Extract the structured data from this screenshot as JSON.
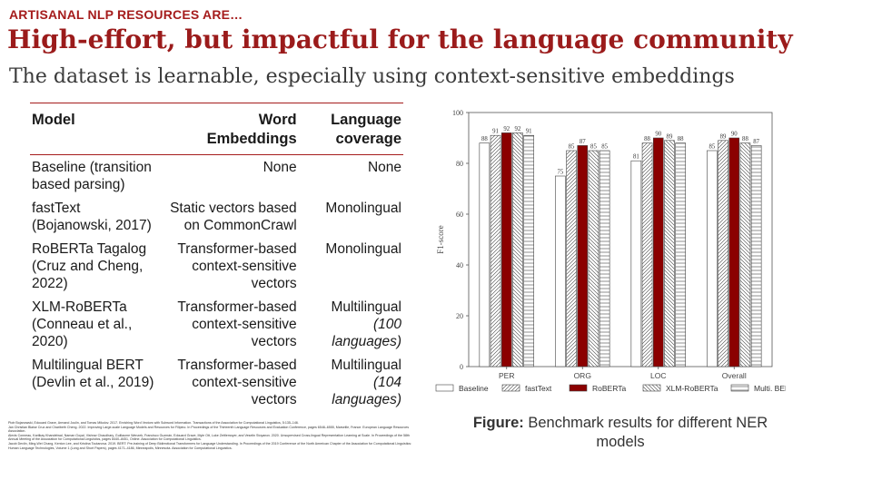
{
  "header": {
    "kicker": "ARTISANAL NLP RESOURCES ARE…",
    "title": "High-effort, but impactful for the language community",
    "subtitle": "The dataset is learnable, especially using context-sensitive embeddings"
  },
  "table": {
    "headers": {
      "model": "Model",
      "embeddings_line1": "Word",
      "embeddings_line2": "Embeddings",
      "coverage_line1": "Language",
      "coverage_line2": "coverage"
    },
    "rows": [
      {
        "model": [
          "Baseline (transition",
          "based parsing)"
        ],
        "embeddings": [
          "None"
        ],
        "coverage": "None",
        "coverage_sub": ""
      },
      {
        "model": [
          "fastText",
          "(Bojanowski, 2017)"
        ],
        "embeddings": [
          "Static vectors based",
          "on CommonCrawl"
        ],
        "coverage": "Monolingual",
        "coverage_sub": ""
      },
      {
        "model": [
          "RoBERTa Tagalog",
          "(Cruz and Cheng,",
          "2022)"
        ],
        "embeddings": [
          "Transformer-based",
          "context-sensitive",
          "vectors"
        ],
        "coverage": "Monolingual",
        "coverage_sub": ""
      },
      {
        "model": [
          "XLM-RoBERTa",
          "(Conneau et al.,",
          "2020)"
        ],
        "embeddings": [
          "Transformer-based",
          "context-sensitive",
          "vectors"
        ],
        "coverage": "Multilingual",
        "coverage_sub": "(100 languages)"
      },
      {
        "model": [
          "Multilingual BERT",
          "(Devlin et al., 2019)"
        ],
        "embeddings": [
          "Transformer-based",
          "context-sensitive",
          "vectors"
        ],
        "coverage": "Multilingual",
        "coverage_sub": "(104 languages)"
      }
    ]
  },
  "references": [
    "Piotr Bojanowski, Edouard Grave, Armand Joulin, and Tomas Mikolov. 2017. Enriching Word Vectors with Subword Information. Transactions of the Association for Computational Linguistics, 5:135–146.",
    "Jan Christian Blaise Cruz and Charibeth Cheng. 2022. Improving Large-scale Language Models and Resources for Filipino. In Proceedings of the Thirteenth Language Resources and Evaluation Conference, pages 6548–6555, Marseille, France. European Language Resources Association.",
    "Alexis Conneau, Kartikay Khandelwal, Naman Goyal, Vishrav Chaudhary, Guillaume Wenzek, Francisco Guzmán, Edouard Grave, Myle Ott, Luke Zettlemoyer, and Veselin Stoyanov. 2020. Unsupervised Cross-lingual Representation Learning at Scale. In Proceedings of the 58th Annual Meeting of the Association for Computational Linguistics, pages 8440–8451, Online. Association for Computational Linguistics.",
    "Jacob Devlin, Ming-Wei Chang, Kenton Lee, and Kristina Toutanova. 2019. BERT: Pre-training of Deep Bidirectional Transformers for Language Understanding. In Proceedings of the 2019 Conference of the North American Chapter of the Association for Computational Linguistics: Human Language Technologies, Volume 1 (Long and Short Papers), pages 4171–4186, Minneapolis, Minnesota. Association for Computational Linguistics."
  ],
  "figure": {
    "caption_bold": "Figure:",
    "caption_rest": " Benchmark results for different NER models"
  },
  "chart_data": {
    "type": "bar",
    "categories": [
      "PER",
      "ORG",
      "LOC",
      "Overall"
    ],
    "ylabel": "F1-score",
    "ylim": [
      0,
      100
    ],
    "yticks": [
      0,
      20,
      40,
      60,
      80,
      100
    ],
    "legend_placement": "bottom",
    "series": [
      {
        "name": "Baseline",
        "values": [
          88,
          75,
          81,
          85
        ],
        "fill": "#ffffff",
        "pattern": "none"
      },
      {
        "name": "fastText",
        "values": [
          91,
          85,
          88,
          89
        ],
        "fill": "#ffffff",
        "pattern": "diag-right"
      },
      {
        "name": "RoBERTa",
        "values": [
          92,
          87,
          90,
          90
        ],
        "fill": "#8b0000",
        "pattern": "solid"
      },
      {
        "name": "XLM-RoBERTa",
        "values": [
          92,
          85,
          89,
          88
        ],
        "fill": "#ffffff",
        "pattern": "diag-left"
      },
      {
        "name": "Multi. BERT",
        "values": [
          91,
          85,
          88,
          87
        ],
        "fill": "#ffffff",
        "pattern": "horizontal"
      }
    ]
  }
}
